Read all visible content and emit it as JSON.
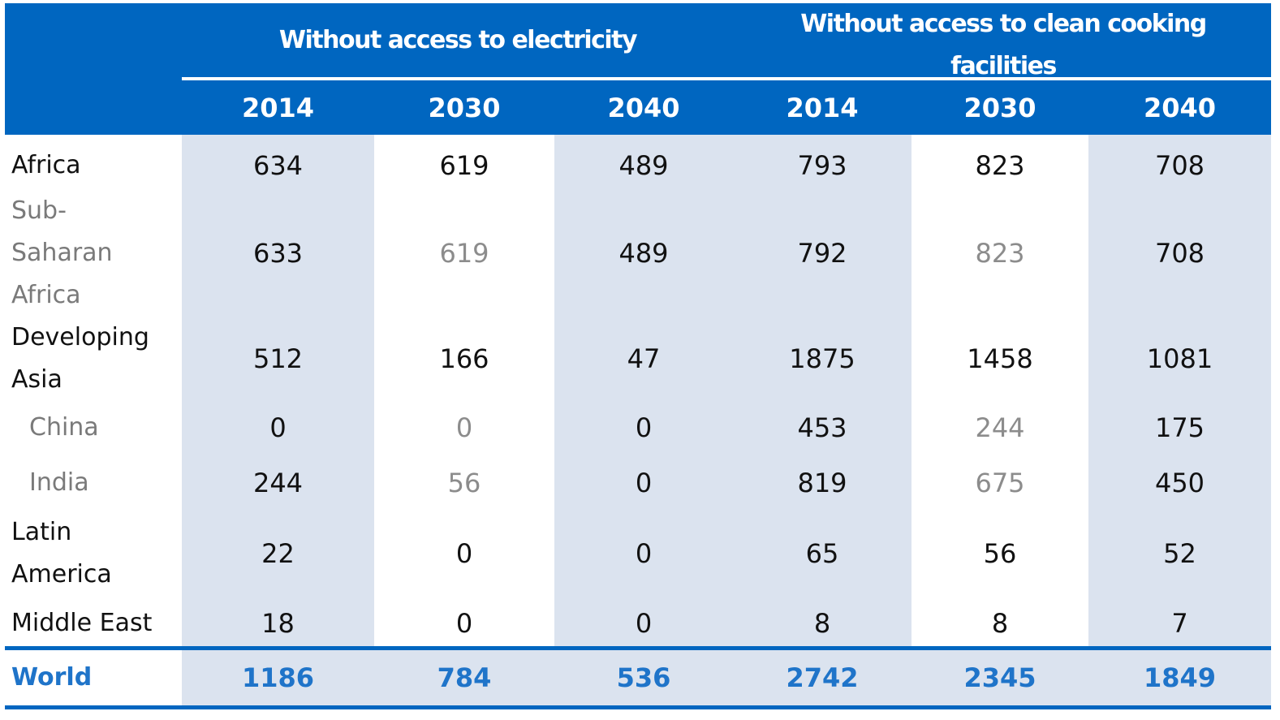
{
  "table": {
    "group_electricity": "Without access to electricity",
    "group_cooking": "Without access to clean cooking facilities",
    "years": [
      "2014",
      "2030",
      "2040",
      "2014",
      "2030",
      "2040"
    ],
    "rows": [
      {
        "label": "Africa",
        "values": [
          "634",
          "619",
          "489",
          "793",
          "823",
          "708"
        ]
      },
      {
        "label": "Sub-Saharan Africa",
        "values": [
          "633",
          "619",
          "489",
          "792",
          "823",
          "708"
        ]
      },
      {
        "label": "Developing Asia",
        "values": [
          "512",
          "166",
          "47",
          "1875",
          "1458",
          "1081"
        ]
      },
      {
        "label": "China",
        "values": [
          "0",
          "0",
          "0",
          "453",
          "244",
          "175"
        ]
      },
      {
        "label": "India",
        "values": [
          "244",
          "56",
          "0",
          "819",
          "675",
          "450"
        ]
      },
      {
        "label": "Latin America",
        "values": [
          "22",
          "0",
          "0",
          "65",
          "56",
          "52"
        ]
      },
      {
        "label": "Middle East",
        "values": [
          "18",
          "0",
          "0",
          "8",
          "8",
          "7"
        ]
      }
    ],
    "total": {
      "label": "World",
      "values": [
        "1186",
        "784",
        "536",
        "2742",
        "2345",
        "1849"
      ]
    }
  },
  "colors": {
    "header_bg": "#0066c0",
    "band_bg": "#dbe3ef",
    "total_text": "#1f74c9",
    "muted_text": "#8c8c8c"
  }
}
